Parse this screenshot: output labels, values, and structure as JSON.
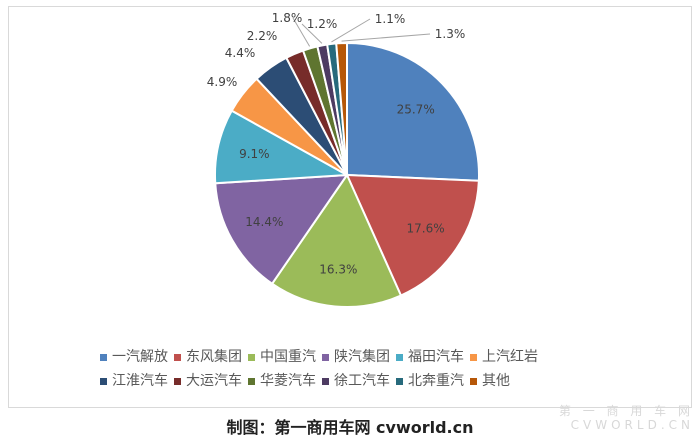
{
  "chart_data": {
    "type": "pie",
    "categories": [
      "一汽解放",
      "东风集团",
      "中国重汽",
      "陕汽集团",
      "福田汽车",
      "上汽红岩",
      "江淮汽车",
      "大运汽车",
      "华菱汽车",
      "徐工汽车",
      "北奔重汽",
      "其他"
    ],
    "values": [
      25.7,
      17.6,
      16.3,
      14.4,
      9.1,
      4.9,
      4.4,
      2.2,
      1.8,
      1.2,
      1.1,
      1.3
    ],
    "data_labels": [
      "25.7%",
      "17.6%",
      "16.3%",
      "14.4%",
      "9.1%",
      "4.9%",
      "4.4%",
      "2.2%",
      "1.8%",
      "1.2%",
      "1.1%",
      "1.3%"
    ],
    "colors": [
      "#4F81BD",
      "#C0504D",
      "#9BBB59",
      "#8064A2",
      "#4BACC6",
      "#F79646",
      "#2C4D75",
      "#772C2A",
      "#5F7530",
      "#4D3B62",
      "#276A7C",
      "#B65708"
    ],
    "legend_position": "bottom",
    "order": "clockwise from top"
  },
  "footer": "制图：第一商用车网 cvworld.cn",
  "watermark": "第一商用车网 CVWORLD.CN"
}
